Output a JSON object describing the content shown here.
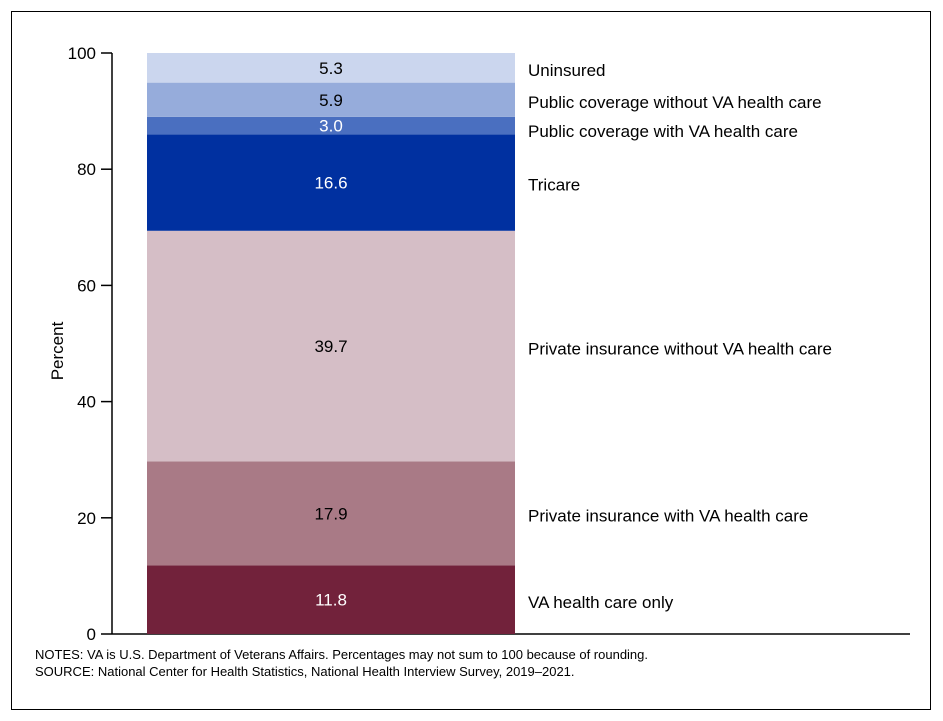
{
  "chart_data": {
    "type": "bar",
    "stacked": true,
    "ylabel": "Percent",
    "ylim": [
      0,
      100
    ],
    "yticks": [
      0,
      20,
      40,
      60,
      80,
      100
    ],
    "grid": false,
    "legend": "labels to the right of each segment",
    "segments": [
      {
        "name": "VA health care only",
        "value": 11.8,
        "label": "11.8",
        "color": "#72223b",
        "label_color": "#ffffff"
      },
      {
        "name": "Private insurance with VA health care",
        "value": 17.9,
        "label": "17.9",
        "color": "#a97a86",
        "label_color": "#000000"
      },
      {
        "name": "Private insurance without VA health care",
        "value": 39.7,
        "label": "39.7",
        "color": "#d5bec6",
        "label_color": "#000000"
      },
      {
        "name": "Tricare",
        "value": 16.6,
        "label": "16.6",
        "color": "#0030a0",
        "label_color": "#ffffff"
      },
      {
        "name": "Public coverage with VA health care",
        "value": 3.0,
        "label": "3.0",
        "color": "#4a6fc0",
        "label_color": "#ffffff"
      },
      {
        "name": "Public coverage without VA health care",
        "value": 5.9,
        "label": "5.9",
        "color": "#96acdb",
        "label_color": "#000000"
      },
      {
        "name": "Uninsured",
        "value": 5.3,
        "label": "5.3",
        "color": "#cbd6ee",
        "label_color": "#000000"
      }
    ]
  },
  "notes": "NOTES: VA is U.S. Department of Veterans Affairs. Percentages may not sum to 100 because of rounding.",
  "source": "SOURCE: National Center for Health Statistics, National Health Interview Survey, 2019–2021."
}
